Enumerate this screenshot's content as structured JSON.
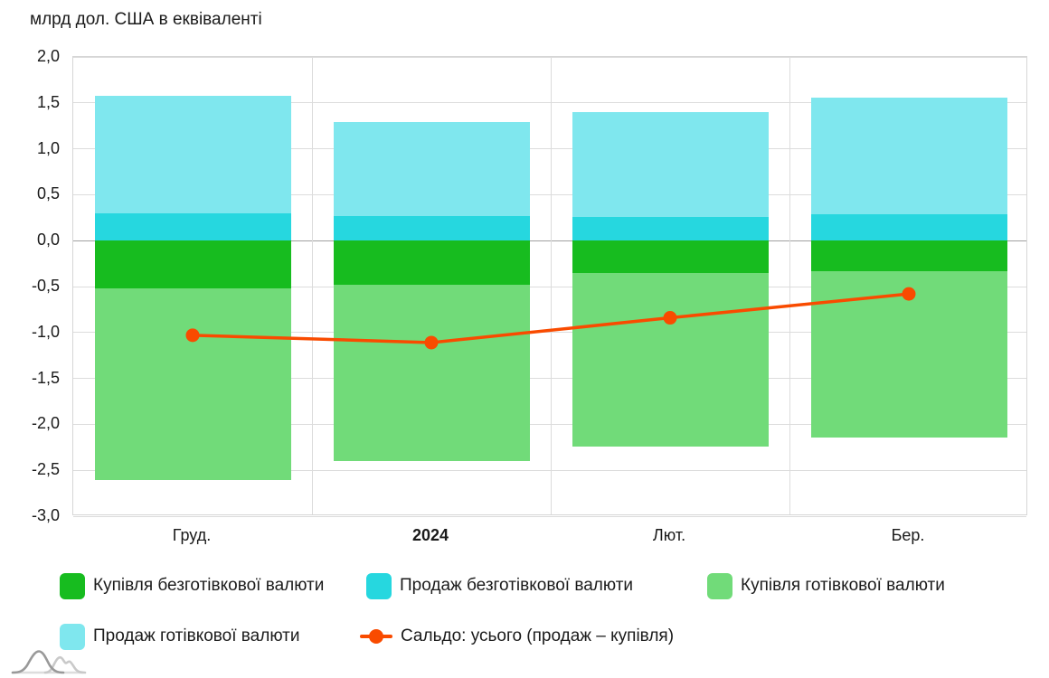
{
  "title": "млрд дол. США в еквіваленті",
  "chart_data": {
    "type": "bar",
    "subtype": "stacked-bars-with-line",
    "title": "млрд дол. США в еквіваленті",
    "categories": [
      "Груд.",
      "2024",
      "Лют.",
      "Бер."
    ],
    "bold_category": "2024",
    "ylim": [
      -3.0,
      2.0
    ],
    "ytick_step": 0.5,
    "ytick_labels": [
      "2,0",
      "1,5",
      "1,0",
      "0,5",
      "0,0",
      "-0,5",
      "-1,0",
      "-1,5",
      "-2,0",
      "-2,5",
      "-3,0"
    ],
    "grid": true,
    "legend_position": "bottom",
    "series": [
      {
        "name": "Купівля безготівкової валюти",
        "color": "#17BC1F",
        "stack": "negative",
        "values": [
          -0.52,
          -0.48,
          -0.35,
          -0.33
        ]
      },
      {
        "name": "Продаж безготівкової валюти",
        "color": "#26D7DF",
        "stack": "positive",
        "values": [
          0.3,
          0.27,
          0.26,
          0.29
        ]
      },
      {
        "name": "Купівля готівкової валюти",
        "color": "#71DB79",
        "stack": "negative",
        "values": [
          -2.09,
          -1.92,
          -1.89,
          -1.81
        ]
      },
      {
        "name": "Продаж готівкової валюти",
        "color": "#7FE7EE",
        "stack": "positive",
        "values": [
          1.28,
          1.02,
          1.14,
          1.27
        ]
      }
    ],
    "line_series": {
      "name": "Сальдо: усього (продаж – купівля)",
      "color": "#F94B00",
      "values": [
        -1.03,
        -1.11,
        -0.84,
        -0.58
      ]
    }
  },
  "colors": {
    "grid": "#dcdcdc",
    "zero_line": "#a0a0a0",
    "text": "#1a1a1a"
  }
}
